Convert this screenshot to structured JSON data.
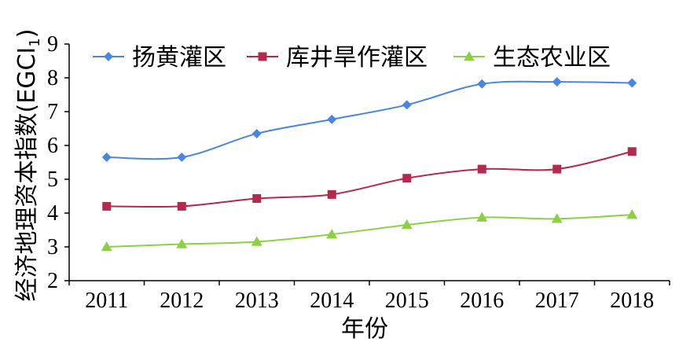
{
  "chart_data": {
    "type": "line",
    "xlabel": "年份",
    "ylabel": "经济地理资本指数(EGCI",
    "ylabel_sub": "1",
    "ylabel_close": ")",
    "categories": [
      "2011",
      "2012",
      "2013",
      "2014",
      "2015",
      "2016",
      "2017",
      "2018"
    ],
    "ylim": [
      2,
      9
    ],
    "yticks": [
      2,
      3,
      4,
      5,
      6,
      7,
      8,
      9
    ],
    "grid": false,
    "legend_position": "top",
    "series": [
      {
        "name": "扬黄灌区",
        "color": "#4a86e0",
        "marker": "diamond",
        "values": [
          5.65,
          5.65,
          6.35,
          6.77,
          7.2,
          7.82,
          7.88,
          7.85
        ]
      },
      {
        "name": "库井旱作灌区",
        "color": "#b5294e",
        "marker": "square",
        "values": [
          4.2,
          4.2,
          4.43,
          4.55,
          5.03,
          5.3,
          5.3,
          5.82
        ]
      },
      {
        "name": "生态农业区",
        "color": "#8ed043",
        "marker": "triangle",
        "values": [
          3.0,
          3.08,
          3.15,
          3.37,
          3.65,
          3.87,
          3.83,
          3.95
        ]
      }
    ]
  }
}
